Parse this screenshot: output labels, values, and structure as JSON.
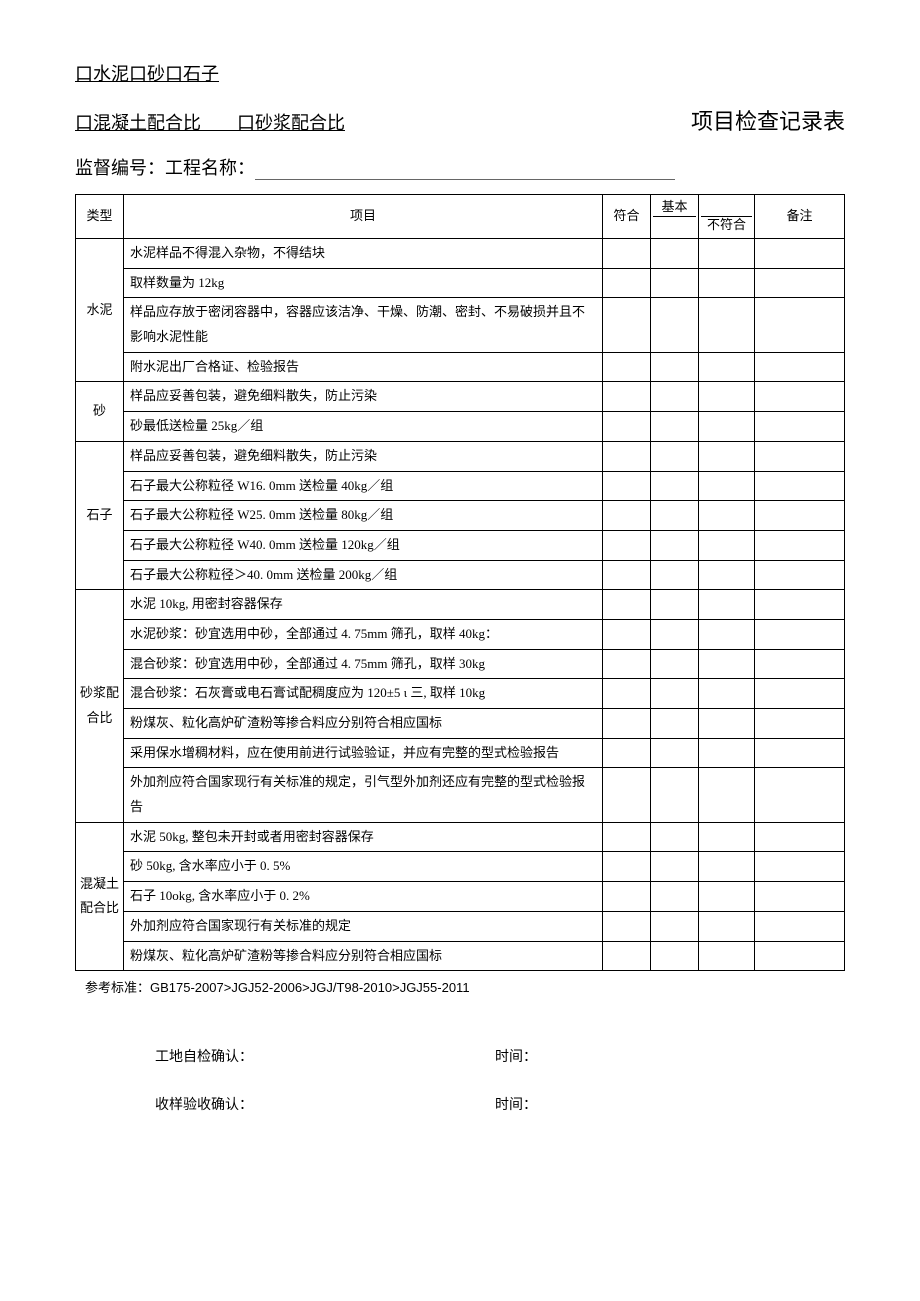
{
  "header": {
    "line1": "口水泥口砂口石子",
    "line2": "口混凝土配合比  口砂浆配合比",
    "title_right": "项目检查记录表",
    "supervise_prefix": "监督编号：工程名称：",
    "columns": {
      "type": "类型",
      "item": "项目",
      "conform": "符合",
      "basic": "基本",
      "nonconform": "不符合",
      "note": "备注"
    }
  },
  "groups": [
    {
      "type": "水泥",
      "items": [
        "水泥样品不得混入杂物，不得结块",
        "取样数量为 12kg",
        "样品应存放于密闭容器中，容器应该洁净、干燥、防潮、密封、不易破损并且不影响水泥性能",
        "附水泥出厂合格证、检验报告"
      ]
    },
    {
      "type": "砂",
      "items": [
        "样品应妥善包装，避免细料散失，防止污染",
        "砂最低送检量 25kg／组"
      ]
    },
    {
      "type": "石子",
      "items": [
        "样品应妥善包装，避免细料散失，防止污染",
        "石子最大公称粒径 W16. 0mm 送检量 40kg／组",
        "石子最大公称粒径 W25. 0mm 送检量 80kg／组",
        "石子最大公称粒径 W40. 0mm 送检量 120kg／组",
        "石子最大公称粒径＞40. 0mm 送检量 200kg／组"
      ]
    },
    {
      "type": "砂浆配合比",
      "items": [
        "水泥 10kg, 用密封容器保存",
        "水泥砂浆：砂宜选用中砂，全部通过 4. 75mm 筛孔，取样 40kg：",
        "混合砂浆：砂宜选用中砂，全部通过 4. 75mm 筛孔，取样 30kg",
        "混合砂浆：石灰膏或电石膏试配稠度应为 120±5 ι 三, 取样 10kg",
        "粉煤灰、粒化高炉矿渣粉等掺合料应分别符合相应国标",
        "采用保水增稠材料，应在使用前进行试验验证，并应有完整的型式检验报告",
        "外加剂应符合国家现行有关标准的规定，引气型外加剂还应有完整的型式检验报告"
      ]
    },
    {
      "type": "混凝土配合比",
      "items": [
        "水泥 50kg, 整包未开封或者用密封容器保存",
        "砂 50kg, 含水率应小于 0. 5%",
        "石子 10okg, 含水率应小于 0. 2%",
        "外加剂应符合国家现行有关标准的规定",
        "粉煤灰、粒化高炉矿渣粉等掺合料应分别符合相应国标"
      ]
    }
  ],
  "reference": "参考标准：GB175-2007>JGJ52-2006>JGJ/T98-2010>JGJ55-2011",
  "sign": {
    "self_check": "工地自检确认：",
    "accept": "收样验收确认：",
    "time": "时间："
  }
}
